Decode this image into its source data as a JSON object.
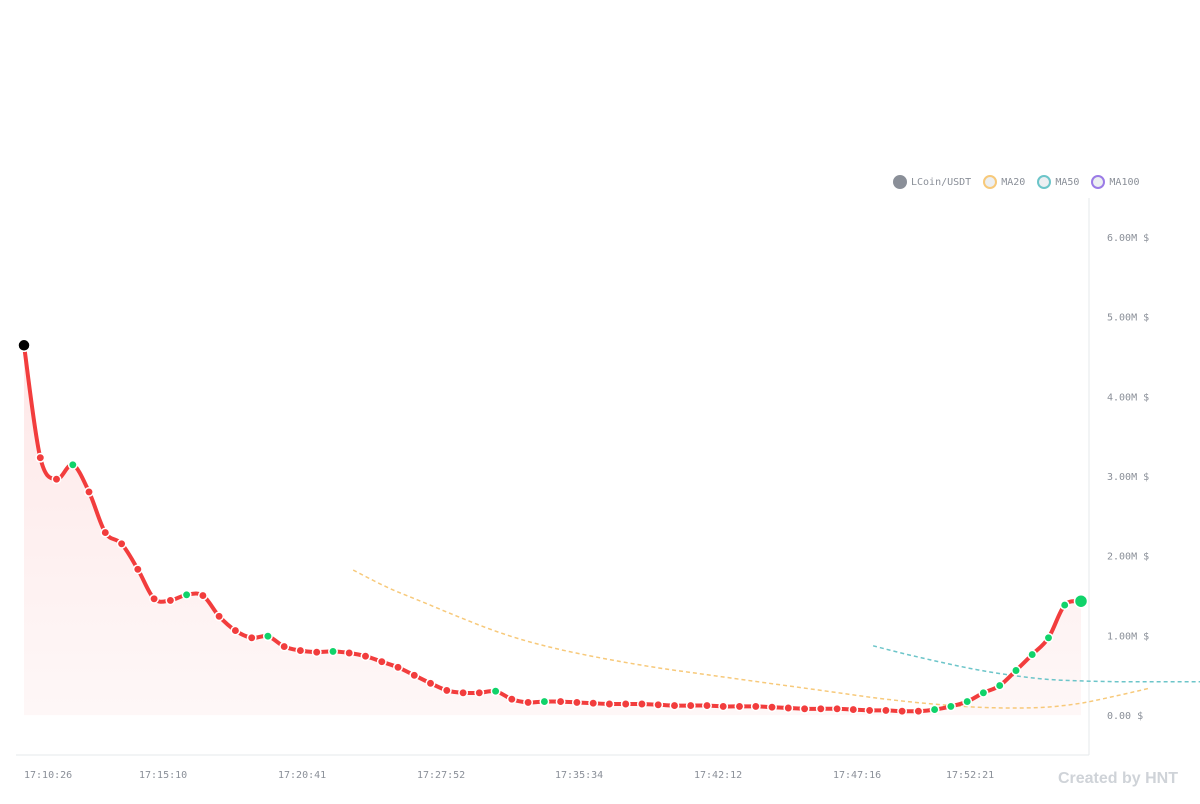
{
  "chart_data": {
    "type": "line",
    "legend_placement": "top-right",
    "grid": false,
    "x_labels": [
      "17:10:26",
      "17:15:10",
      "17:20:41",
      "17:27:52",
      "17:35:34",
      "17:42:12",
      "17:47:16",
      "17:52:21"
    ],
    "y_ticks": [
      {
        "value": 0,
        "label": "0.00 $"
      },
      {
        "value": 1000000,
        "label": "1.00M $"
      },
      {
        "value": 2000000,
        "label": "2.00M $"
      },
      {
        "value": 3000000,
        "label": "3.00M $"
      },
      {
        "value": 4000000,
        "label": "4.00M $"
      },
      {
        "value": 5000000,
        "label": "5.00M $"
      },
      {
        "value": 6000000,
        "label": "6.00M $"
      }
    ],
    "ylim": [
      -500000,
      6500000
    ],
    "x_range": [
      0,
      61
    ],
    "series": [
      {
        "name": "LCoin/USDT",
        "color": "#f23d3d",
        "up_color": "#10d36a",
        "start_color": "#000000",
        "values": [
          4640000,
          3230000,
          2960000,
          3140000,
          2800000,
          2290000,
          2150000,
          1830000,
          1460000,
          1440000,
          1510000,
          1500000,
          1240000,
          1060000,
          970000,
          990000,
          860000,
          810000,
          790000,
          800000,
          780000,
          740000,
          670000,
          600000,
          500000,
          400000,
          310000,
          280000,
          280000,
          300000,
          200000,
          160000,
          170000,
          170000,
          160000,
          150000,
          140000,
          140000,
          140000,
          130000,
          120000,
          120000,
          120000,
          110000,
          110000,
          110000,
          100000,
          90000,
          80000,
          80000,
          80000,
          70000,
          60000,
          60000,
          50000,
          50000,
          70000,
          110000,
          170000,
          280000,
          370000,
          560000,
          760000,
          970000,
          1380000,
          1430000
        ]
      },
      {
        "name": "MA20",
        "color": "#f7c97a",
        "dash": true,
        "start_index": 19,
        "values": [
          1820000,
          1600000,
          1420000,
          1240000,
          1070000,
          930000,
          820000,
          730000,
          650000,
          580000,
          520000,
          460000,
          400000,
          340000,
          280000,
          220000,
          170000,
          130000,
          100000,
          90000,
          100000,
          150000,
          240000,
          340000
        ]
      },
      {
        "name": "MA50",
        "color": "#6cc5c9",
        "dash": true,
        "start_index": 49,
        "values": [
          870000,
          760000,
          660000,
          570000,
          500000,
          450000,
          430000,
          420000,
          420000,
          420000,
          420000,
          420000
        ]
      },
      {
        "name": "MA100",
        "color": "#9b7be6",
        "dash": true,
        "start_index": 0,
        "values": []
      }
    ]
  },
  "legend": [
    {
      "label": "LCoin/USDT",
      "fill": "#8a8f98",
      "border": "#8a8f98"
    },
    {
      "label": "MA20",
      "fill": "#eceff2",
      "border": "#f7c97a"
    },
    {
      "label": "MA50",
      "fill": "#eceff2",
      "border": "#6cc5c9"
    },
    {
      "label": "MA100",
      "fill": "#eceff2",
      "border": "#9b7be6"
    }
  ],
  "watermark": "Created by HNT"
}
